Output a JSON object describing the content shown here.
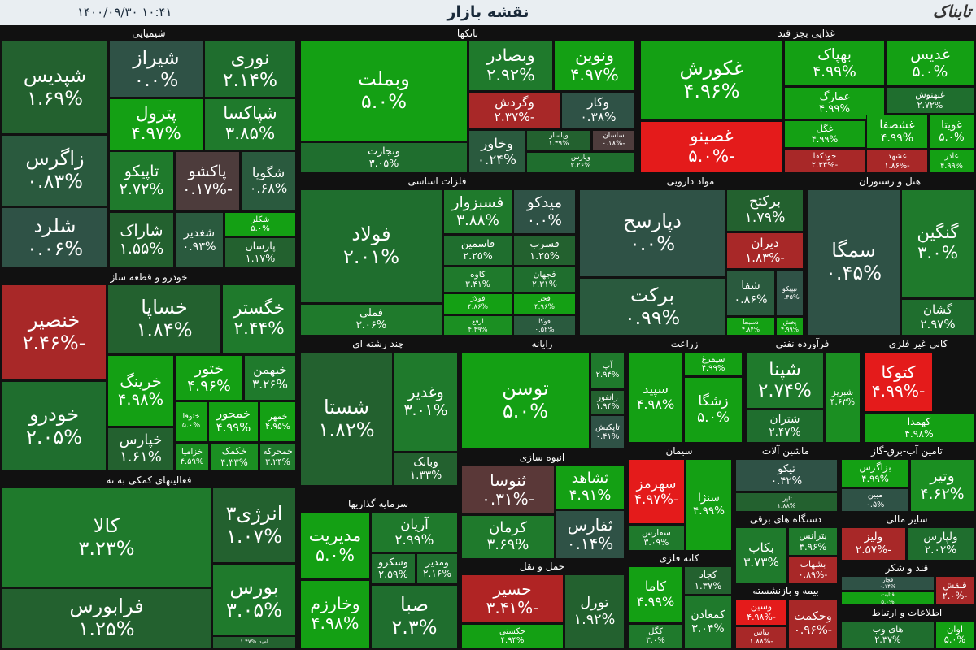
{
  "header": {
    "title": "نقشه بازار",
    "datetime": "۱۴۰۰/۰۹/۳۰   ۱۰:۴۱",
    "logo": "تابناک"
  },
  "sectors": [
    {
      "name": "شیمیایی",
      "tiles": [
        {
          "name": "شپدیس",
          "change": "۱.۶۹%",
          "color": "#23612f"
        },
        {
          "name": "شیراز",
          "change": "۰.۰%",
          "color": "#2f5246"
        },
        {
          "name": "نوری",
          "change": "۲.۱۴%",
          "color": "#1f6e2e"
        },
        {
          "name": "پترول",
          "change": "۴.۹۷%",
          "color": "#14a014"
        },
        {
          "name": "شپاکسا",
          "change": "۳.۸۵%",
          "color": "#1f7a2c"
        },
        {
          "name": "زاگرس",
          "change": "۰.۸۳%",
          "color": "#2a5a3e"
        },
        {
          "name": "تاپیکو",
          "change": "۲.۷۲%",
          "color": "#1f7a2c"
        },
        {
          "name": "پاکشو",
          "change": "-۰.۱۷%",
          "color": "#4d3c3c"
        },
        {
          "name": "شگویا",
          "change": "۰.۶۸%",
          "color": "#2a5a3e"
        },
        {
          "name": "شلرد",
          "change": "۰.۰۶%",
          "color": "#2f5246"
        },
        {
          "name": "شاراک",
          "change": "۱.۵۵%",
          "color": "#23612f"
        },
        {
          "name": "شغدیر",
          "change": "۰.۹۳%",
          "color": "#2a5a3e"
        },
        {
          "name": "شکلر",
          "change": "۵.۰%",
          "color": "#14a014"
        },
        {
          "name": "پارسان",
          "change": "۱.۱۷%",
          "color": "#23612f"
        }
      ]
    },
    {
      "name": "خودرو  و قطعه ساز",
      "tiles": [
        {
          "name": "خنصیر",
          "change": "-۲.۴۶%",
          "color": "#a82828"
        },
        {
          "name": "خساپا",
          "change": "۱.۸۴%",
          "color": "#23612f"
        },
        {
          "name": "خگستر",
          "change": "۲.۴۴%",
          "color": "#1f7a2c"
        },
        {
          "name": "خودرو",
          "change": "۲.۰۵%",
          "color": "#1f6e2e"
        },
        {
          "name": "خرینگ",
          "change": "۴.۹۸%",
          "color": "#14a014"
        },
        {
          "name": "ختور",
          "change": "۴.۹۶%",
          "color": "#14a014"
        },
        {
          "name": "خبهمن",
          "change": "۳.۲۶%",
          "color": "#1f7a2c"
        },
        {
          "name": "ختوقا",
          "change": "۵.۰%",
          "color": "#14a014"
        },
        {
          "name": "خمحور",
          "change": "۴.۹۹%",
          "color": "#14a014"
        },
        {
          "name": "خمهر",
          "change": "۴.۹۵%",
          "color": "#14a014"
        },
        {
          "name": "خپارس",
          "change": "۱.۶۱%",
          "color": "#23612f"
        },
        {
          "name": "خزامیا",
          "change": "۴.۵۹%",
          "color": "#1b8f22"
        },
        {
          "name": "خکمک",
          "change": "۴.۳۳%",
          "color": "#1b8f22"
        },
        {
          "name": "خمحرکه",
          "change": "۳.۲۴%",
          "color": "#1f7a2c"
        }
      ]
    },
    {
      "name": "فعالیتهای کمکی به نه",
      "tiles": [
        {
          "name": "کالا",
          "change": "۳.۲۳%",
          "color": "#1f7a2c"
        },
        {
          "name": "انرژی۳",
          "change": "۱.۰۷%",
          "color": "#23612f"
        },
        {
          "name": "فرابورس",
          "change": "۱.۲۵%",
          "color": "#23612f"
        },
        {
          "name": "بورس",
          "change": "۳.۰۵%",
          "color": "#1f7a2c"
        },
        {
          "name": "امید",
          "change": "۱.۴۷%",
          "color": "#23612f"
        }
      ]
    },
    {
      "name": "بانکها",
      "tiles": [
        {
          "name": "وبملت",
          "change": "۵.۰%",
          "color": "#14a014"
        },
        {
          "name": "وبصادر",
          "change": "۲.۹۲%",
          "color": "#1f7a2c"
        },
        {
          "name": "ونوین",
          "change": "۴.۹۷%",
          "color": "#14a014"
        },
        {
          "name": "وگردش",
          "change": "-۲.۳۷%",
          "color": "#a82828"
        },
        {
          "name": "وکار",
          "change": "۰.۳۸%",
          "color": "#2f5246"
        },
        {
          "name": "وتجارت",
          "change": "۳.۰۵%",
          "color": "#1f6e2e"
        },
        {
          "name": "وخاور",
          "change": "۰.۲۴%",
          "color": "#2a5a3e"
        },
        {
          "name": "وپاسار",
          "change": "۱.۳۹%",
          "color": "#23612f"
        },
        {
          "name": "ساسان",
          "change": "-۰.۱۸%",
          "color": "#4d3c3c"
        },
        {
          "name": "وپارس",
          "change": "۲.۲۶%",
          "color": "#1f6e2e"
        }
      ]
    },
    {
      "name": "غذایی بجز قند",
      "tiles": [
        {
          "name": "غکورش",
          "change": "۴.۹۶%",
          "color": "#14a014"
        },
        {
          "name": "بهپاک",
          "change": "۴.۹۹%",
          "color": "#14a014"
        },
        {
          "name": "غدیس",
          "change": "۵.۰%",
          "color": "#14a014"
        },
        {
          "name": "غمارگ",
          "change": "۴.۹۹%",
          "color": "#14a014"
        },
        {
          "name": "غبهنوش",
          "change": "۲.۷۲%",
          "color": "#1f6e2e"
        },
        {
          "name": "غصینو",
          "change": "-۵.۰%",
          "color": "#e41b1b"
        },
        {
          "name": "غگل",
          "change": "۴.۹۹%",
          "color": "#14a014"
        },
        {
          "name": "غشصفا",
          "change": "۴.۹۹%",
          "color": "#14a014"
        },
        {
          "name": "غویتا",
          "change": "۵.۰%",
          "color": "#14a014"
        },
        {
          "name": "خودکفا",
          "change": "-۲.۳۳%",
          "color": "#a82828"
        },
        {
          "name": "غشهد",
          "change": "-۱.۸۶%",
          "color": "#a82828"
        },
        {
          "name": "غاذر",
          "change": "۴.۹۹%",
          "color": "#14a014"
        }
      ]
    },
    {
      "name": "فلزات اساسی",
      "tiles": [
        {
          "name": "فولاد",
          "change": "۲.۰۱%",
          "color": "#1f6e2e"
        },
        {
          "name": "فسبزوار",
          "change": "۳.۸۸%",
          "color": "#1f7a2c"
        },
        {
          "name": "میدکو",
          "change": "۰.۰%",
          "color": "#2f5246"
        },
        {
          "name": "فاسمین",
          "change": "۲.۲۵%",
          "color": "#1f6e2e"
        },
        {
          "name": "فسرب",
          "change": "۱.۲۵%",
          "color": "#23612f"
        },
        {
          "name": "کاوه",
          "change": "۳.۴۱%",
          "color": "#1f7a2c"
        },
        {
          "name": "فجهان",
          "change": "۲.۳۱%",
          "color": "#1f6e2e"
        },
        {
          "name": "فملی",
          "change": "۳.۰۶%",
          "color": "#1f7a2c"
        },
        {
          "name": "فولاژ",
          "change": "۴.۸۶%",
          "color": "#14a014"
        },
        {
          "name": "فجر",
          "change": "۴.۹۶%",
          "color": "#14a014"
        },
        {
          "name": "ارفع",
          "change": "۴.۴۹%",
          "color": "#1b8f22"
        },
        {
          "name": "فوکا",
          "change": "۰.۵۲%",
          "color": "#2a5a3e"
        }
      ]
    },
    {
      "name": "مواد دارویی",
      "tiles": [
        {
          "name": "دپارسح",
          "change": "۰.۰%",
          "color": "#2f5246"
        },
        {
          "name": "برکتح",
          "change": "۱.۷۹%",
          "color": "#23612f"
        },
        {
          "name": "دیران",
          "change": "-۱.۸۳%",
          "color": "#a82828"
        },
        {
          "name": "برکت",
          "change": "۰.۹۹%",
          "color": "#2a5a3e"
        },
        {
          "name": "شفا",
          "change": "۰.۸۶%",
          "color": "#2a5a3e"
        },
        {
          "name": "تیپیکو",
          "change": "۰.۴۵%",
          "color": "#2f5246"
        },
        {
          "name": "دسبحا",
          "change": "۴.۸۴%",
          "color": "#14a014"
        },
        {
          "name": "پخش",
          "change": "۴.۹۹%",
          "color": "#14a014"
        }
      ]
    },
    {
      "name": "هتل و رستوران",
      "tiles": [
        {
          "name": "سمگا",
          "change": "۰.۴۵%",
          "color": "#2f5246"
        },
        {
          "name": "گنگین",
          "change": "۳.۰%",
          "color": "#1f7a2c"
        },
        {
          "name": "گشان",
          "change": "۲.۹۷%",
          "color": "#1f6e2e"
        }
      ]
    },
    {
      "name": "چند رشته ای",
      "tiles": [
        {
          "name": "شستا",
          "change": "۱.۸۲%",
          "color": "#23612f"
        },
        {
          "name": "وغدیر",
          "change": "۳.۰۱%",
          "color": "#1f7a2c"
        },
        {
          "name": "وبانک",
          "change": "۱.۳۳%",
          "color": "#23612f"
        }
      ]
    },
    {
      "name": "رایانه",
      "tiles": [
        {
          "name": "توسن",
          "change": "۵.۰%",
          "color": "#14a014"
        },
        {
          "name": "آپ",
          "change": "۲.۹۴%",
          "color": "#1f7a2c"
        },
        {
          "name": "رانفور",
          "change": "۱.۹۴%",
          "color": "#23612f"
        },
        {
          "name": "تاپکیش",
          "change": "۰.۴۱%",
          "color": "#2f5246"
        }
      ]
    },
    {
      "name": "انبوه سازی",
      "tiles": [
        {
          "name": "ثنوسا",
          "change": "-۰.۳۱%",
          "color": "#5a3838"
        },
        {
          "name": "ثشاهد",
          "change": "۴.۹۱%",
          "color": "#14a014"
        },
        {
          "name": "کرمان",
          "change": "۳.۶۹%",
          "color": "#1f7a2c"
        },
        {
          "name": "ثفارس",
          "change": "۰.۱۴%",
          "color": "#2f5246"
        }
      ]
    },
    {
      "name": "حمل و نقل",
      "tiles": [
        {
          "name": "حسیر",
          "change": "-۳.۴۱%",
          "color": "#b02424"
        },
        {
          "name": "تورل",
          "change": "۱.۹۲%",
          "color": "#23612f"
        },
        {
          "name": "حکشتی",
          "change": "۴.۹۴%",
          "color": "#14a014"
        }
      ]
    },
    {
      "name": "سرمایه گذاریها",
      "tiles": [
        {
          "name": "مدیریت",
          "change": "۵.۰%",
          "color": "#14a014"
        },
        {
          "name": "آریان",
          "change": "۲.۹۹%",
          "color": "#1f7a2c"
        },
        {
          "name": "وخارزم",
          "change": "۴.۹۸%",
          "color": "#14a014"
        },
        {
          "name": "وسکرو",
          "change": "۲.۵۹%",
          "color": "#1f6e2e"
        },
        {
          "name": "ومدیر",
          "change": "۲.۱۶%",
          "color": "#1f6e2e"
        },
        {
          "name": "صبا",
          "change": "۲.۳%",
          "color": "#1f6e2e"
        }
      ]
    },
    {
      "name": "زراعت",
      "tiles": [
        {
          "name": "سپید",
          "change": "۴.۹۸%",
          "color": "#14a014"
        },
        {
          "name": "سیمرغ",
          "change": "۴.۹۹%",
          "color": "#14a014"
        },
        {
          "name": "زشگا",
          "change": "۵.۰%",
          "color": "#14a014"
        }
      ]
    },
    {
      "name": "فرآورده نفتی",
      "tiles": [
        {
          "name": "شپنا",
          "change": "۲.۷۴%",
          "color": "#1f7a2c"
        },
        {
          "name": "شبریز",
          "change": "۴.۶۳%",
          "color": "#1b8f22"
        },
        {
          "name": "شتران",
          "change": "۲.۴۷%",
          "color": "#1f6e2e"
        }
      ]
    },
    {
      "name": "کانی غیر فلزی",
      "tiles": [
        {
          "name": "کتوکا",
          "change": "-۴.۹۹%",
          "color": "#e41b1b"
        },
        {
          "name": "کهمدا",
          "change": "۴.۹۸%",
          "color": "#14a014"
        }
      ]
    },
    {
      "name": "سیمان",
      "tiles": [
        {
          "name": "سهرمز",
          "change": "-۴.۹۷%",
          "color": "#e41b1b"
        },
        {
          "name": "سفارس",
          "change": "۳.۰۹%",
          "color": "#1f7a2c"
        },
        {
          "name": "سنژا",
          "change": "۴.۹۹%",
          "color": "#14a014"
        }
      ]
    },
    {
      "name": "ماشین آلات",
      "tiles": [
        {
          "name": "تیکو",
          "change": "۰.۴۲%",
          "color": "#2f5246"
        },
        {
          "name": "تاپرا",
          "change": "۱.۸۸%",
          "color": "#23612f"
        }
      ]
    },
    {
      "name": "تامین آب-برق-گاز",
      "tiles": [
        {
          "name": "بزاگرس",
          "change": "۴.۹۹%",
          "color": "#14a014"
        },
        {
          "name": "مبین",
          "change": "۰.۵%",
          "color": "#2f5246"
        },
        {
          "name": "وتیر",
          "change": "۴.۶۲%",
          "color": "#1b8f22"
        }
      ]
    },
    {
      "name": "دستگاه های برقی",
      "tiles": [
        {
          "name": "بکاب",
          "change": "۳.۷۳%",
          "color": "#1f7a2c"
        },
        {
          "name": "بترانس",
          "change": "۳.۹۶%",
          "color": "#1f7a2c"
        },
        {
          "name": "بشهاب",
          "change": "-۰.۸۹%",
          "color": "#a82828"
        }
      ]
    },
    {
      "name": "سایر مالی",
      "tiles": [
        {
          "name": "ولیز",
          "change": "-۲.۵۷%",
          "color": "#a82828"
        },
        {
          "name": "ولپارس",
          "change": "۲.۰۲%",
          "color": "#1f6e2e"
        }
      ]
    },
    {
      "name": "قند و شکر",
      "tiles": [
        {
          "name": "قچار",
          "change": "۰.۱۴%",
          "color": "#2f5246"
        },
        {
          "name": "قثابت",
          "change": "۵.۰%",
          "color": "#14a014"
        },
        {
          "name": "قنقش",
          "change": "-۲.۰%",
          "color": "#a82828"
        }
      ]
    },
    {
      "name": "اطلاعات و ارتباط",
      "tiles": [
        {
          "name": "های وب",
          "change": "۲.۳۷%",
          "color": "#1f6e2e"
        },
        {
          "name": "اوان",
          "change": "۵.۰%",
          "color": "#14a014"
        }
      ]
    },
    {
      "name": "بیمه و بازنشسته",
      "tiles": [
        {
          "name": "وسین",
          "change": "-۴.۹۸%",
          "color": "#e41b1b"
        },
        {
          "name": "بیاس",
          "change": "-۱.۸۸%",
          "color": "#a82828"
        },
        {
          "name": "وحکمت",
          "change": "-۰.۹۶%",
          "color": "#a82828"
        }
      ]
    },
    {
      "name": "کانه فلزی",
      "tiles": [
        {
          "name": "کاما",
          "change": "۴.۹۹%",
          "color": "#14a014"
        },
        {
          "name": "کچاد",
          "change": "۱.۳۷%",
          "color": "#23612f"
        },
        {
          "name": "کگل",
          "change": "۳.۰%",
          "color": "#1f7a2c"
        },
        {
          "name": "کمعادن",
          "change": "۳.۰۴%",
          "color": "#1f7a2c"
        }
      ]
    }
  ]
}
